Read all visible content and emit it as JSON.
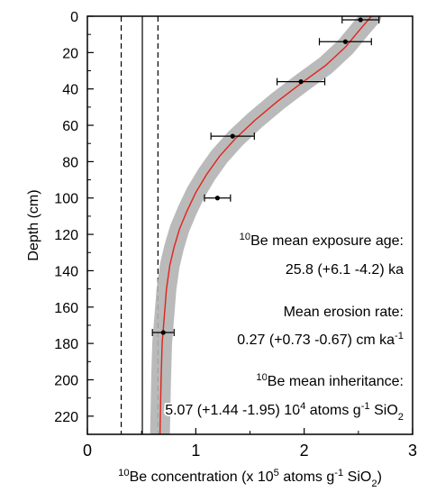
{
  "chart_data": {
    "type": "scatter",
    "xlabel_parts": [
      "10",
      "Be concentration (x 10",
      "5",
      " atoms g",
      "-1",
      " SiO",
      "2",
      ")"
    ],
    "ylabel": "Depth (cm)",
    "xlim": [
      0,
      3
    ],
    "ylim": [
      230,
      0
    ],
    "xticks": [
      0,
      1,
      2,
      3
    ],
    "yticks": [
      0,
      20,
      40,
      60,
      80,
      100,
      120,
      140,
      160,
      180,
      200,
      220
    ],
    "grid": false,
    "points": [
      {
        "x": 2.52,
        "y": 2,
        "xerr": 0.17
      },
      {
        "x": 2.38,
        "y": 14,
        "xerr": 0.24
      },
      {
        "x": 1.97,
        "y": 36,
        "xerr": 0.22
      },
      {
        "x": 1.34,
        "y": 66,
        "xerr": 0.2
      },
      {
        "x": 1.2,
        "y": 100,
        "xerr": 0.12
      },
      {
        "x": 0.7,
        "y": 174,
        "xerr": 0.1
      }
    ],
    "mean_model": {
      "color": "#e2231a",
      "x": [
        2.62,
        2.52,
        2.38,
        2.2,
        1.97,
        1.75,
        1.55,
        1.37,
        1.22,
        1.1,
        1.0,
        0.92,
        0.85,
        0.8,
        0.76,
        0.73,
        0.71,
        0.69,
        0.68,
        0.67
      ],
      "y": [
        0,
        7,
        17,
        27,
        37,
        47,
        57,
        67,
        77,
        87,
        97,
        107,
        117,
        127,
        137,
        150,
        165,
        180,
        200,
        230
      ]
    },
    "model_envelope_color": "#b3b3b3",
    "inheritance": {
      "mean": 0.507,
      "low": 0.312,
      "high": 0.651
    },
    "annotations": [
      {
        "parts": [
          "10",
          "Be mean exposure age:"
        ],
        "sup": [
          0
        ]
      },
      {
        "parts": [
          "25.8 (+6.1 -4.2) ka"
        ],
        "sup": []
      },
      {
        "parts": [
          "Mean erosion rate:"
        ],
        "sup": []
      },
      {
        "parts": [
          "0.27 (+0.73 -0.67) cm ka",
          "-1"
        ],
        "sup": [
          1
        ]
      },
      {
        "parts": [
          "10",
          "Be mean inheritance:"
        ],
        "sup": [
          0
        ]
      },
      {
        "parts": [
          "5.07 (+1.44 -1.95) 10",
          "4",
          " atoms g",
          "-1",
          " SiO",
          "2"
        ],
        "sup": [
          1,
          3
        ],
        "sub": [
          5
        ]
      }
    ]
  }
}
